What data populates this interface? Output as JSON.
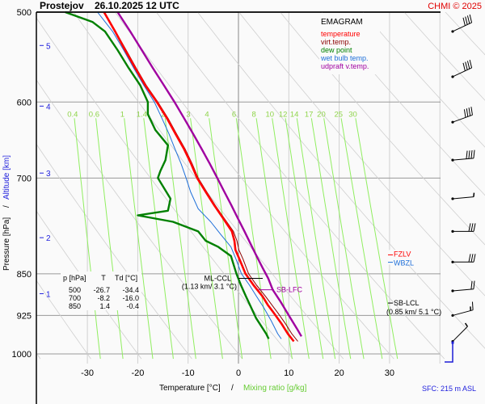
{
  "header": {
    "station": "Prostejov",
    "datetime": "26.10.2025 12 UTC",
    "copyright": "CHMI © 2025"
  },
  "legend": {
    "title": "EMAGRAM",
    "items": [
      {
        "label": "temperature",
        "color": "#ff0000"
      },
      {
        "label": "virt.temp.",
        "color": "#8b0000"
      },
      {
        "label": "dew point",
        "color": "#008000"
      },
      {
        "label": "wet bulb temp.",
        "color": "#1e6fd9"
      },
      {
        "label": "udpraft v.temp.",
        "color": "#a000a0"
      }
    ]
  },
  "table": {
    "headers": [
      "p [hPa]",
      "T",
      "Td [°C]"
    ],
    "rows": [
      [
        "500",
        "-26.7",
        "-34.4"
      ],
      [
        "700",
        "-8.2",
        "-16.0"
      ],
      [
        "850",
        "1.4",
        "-0.4"
      ]
    ]
  },
  "annotations": {
    "ml_ccl": {
      "label": "ML-CCL",
      "detail": "(1.13 km/ 3.1 °C)",
      "pressure": 858
    },
    "sb_lfc": {
      "label": "SB-LFC",
      "pressure": 878
    },
    "fzlv": {
      "label": "FZLV",
      "pressure": 818
    },
    "wbzl": {
      "label": "WBZL",
      "pressure": 825
    },
    "sb_lcl": {
      "label": "SB-LCL",
      "detail": "(0.85 km/ 5.1 °C)",
      "pressure": 902
    }
  },
  "footer": {
    "sfc": "SFC: 215 m ASL"
  },
  "chart_data": {
    "type": "line",
    "title": "Prostejov 26.10.2025 12 UTC — EMAGRAM",
    "xlabel": "Temperature [°C]",
    "xlabel2": "Mixing ratio [g/kg]",
    "ylabel": "Pressure [hPa]",
    "ylabel2": "Altitude [km]",
    "xlim": [
      -39,
      41
    ],
    "ylim": [
      1000,
      500
    ],
    "x_ticks": [
      -30,
      -20,
      -10,
      0,
      10,
      20,
      30
    ],
    "y_ticks": [
      500,
      600,
      700,
      850,
      925,
      1000
    ],
    "altitude_ticks": [
      {
        "km": 1,
        "p": 885
      },
      {
        "km": 2,
        "p": 790
      },
      {
        "km": 3,
        "p": 693
      },
      {
        "km": 4,
        "p": 605
      },
      {
        "km": 5,
        "p": 535
      }
    ],
    "mixing_ratio_labels": [
      "0.4",
      "0.6",
      "1",
      "1.4",
      "2",
      "3",
      "4",
      "6",
      "8",
      "10",
      "12",
      "14",
      "17",
      "20",
      "25",
      "30"
    ],
    "grid": true,
    "series": [
      {
        "name": "temperature",
        "color": "#ff0000",
        "points": [
          [
            -26.7,
            500
          ],
          [
            -24.5,
            520
          ],
          [
            -22.5,
            540
          ],
          [
            -20.5,
            560
          ],
          [
            -18.5,
            580
          ],
          [
            -16.2,
            600
          ],
          [
            -14.2,
            620
          ],
          [
            -12.5,
            640
          ],
          [
            -10.8,
            660
          ],
          [
            -9.4,
            680
          ],
          [
            -8.2,
            700
          ],
          [
            -6.5,
            720
          ],
          [
            -4.8,
            740
          ],
          [
            -3.0,
            760
          ],
          [
            -1.3,
            780
          ],
          [
            -0.8,
            795
          ],
          [
            -0.6,
            810
          ],
          [
            0.2,
            825
          ],
          [
            1.4,
            850
          ],
          [
            3.0,
            870
          ],
          [
            4.8,
            890
          ],
          [
            5.8,
            905
          ],
          [
            7.0,
            920
          ],
          [
            8.5,
            940
          ],
          [
            9.8,
            960
          ],
          [
            11.0,
            975
          ]
        ]
      },
      {
        "name": "virt.temp.",
        "color": "#8b0000",
        "points": [
          [
            -26.6,
            500
          ],
          [
            -24.4,
            520
          ],
          [
            -22.3,
            540
          ],
          [
            -20.3,
            560
          ],
          [
            -18.3,
            580
          ],
          [
            -16.0,
            600
          ],
          [
            -14.0,
            620
          ],
          [
            -12.3,
            640
          ],
          [
            -10.6,
            660
          ],
          [
            -9.2,
            680
          ],
          [
            -8.0,
            700
          ],
          [
            -6.3,
            720
          ],
          [
            -4.6,
            740
          ],
          [
            -2.8,
            760
          ],
          [
            -1.0,
            780
          ],
          [
            -0.3,
            795
          ],
          [
            0.1,
            810
          ],
          [
            0.9,
            825
          ],
          [
            2.0,
            850
          ],
          [
            3.6,
            870
          ],
          [
            5.4,
            890
          ],
          [
            6.6,
            905
          ],
          [
            7.8,
            920
          ],
          [
            9.3,
            940
          ],
          [
            10.6,
            960
          ],
          [
            11.8,
            975
          ]
        ]
      },
      {
        "name": "dew point",
        "color": "#008000",
        "points": [
          [
            -34.4,
            500
          ],
          [
            -29.0,
            510
          ],
          [
            -26.5,
            520
          ],
          [
            -24.0,
            540
          ],
          [
            -21.8,
            560
          ],
          [
            -19.5,
            580
          ],
          [
            -18.0,
            600
          ],
          [
            -18.0,
            615
          ],
          [
            -16.5,
            635
          ],
          [
            -14.0,
            655
          ],
          [
            -14.5,
            675
          ],
          [
            -15.5,
            690
          ],
          [
            -16.0,
            700
          ],
          [
            -13.5,
            730
          ],
          [
            -14.0,
            748
          ],
          [
            -20.0,
            755
          ],
          [
            -13.0,
            765
          ],
          [
            -8.0,
            780
          ],
          [
            -6.5,
            795
          ],
          [
            -4.0,
            805
          ],
          [
            -1.5,
            820
          ],
          [
            -0.4,
            850
          ],
          [
            0.5,
            870
          ],
          [
            1.5,
            890
          ],
          [
            2.5,
            910
          ],
          [
            3.5,
            930
          ],
          [
            5.5,
            960
          ],
          [
            6.0,
            970
          ]
        ]
      },
      {
        "name": "wet bulb temp.",
        "color": "#1e6fd9",
        "points": [
          [
            -28.0,
            500
          ],
          [
            -25.0,
            520
          ],
          [
            -22.8,
            540
          ],
          [
            -20.8,
            560
          ],
          [
            -18.8,
            580
          ],
          [
            -16.7,
            600
          ],
          [
            -15.2,
            620
          ],
          [
            -13.8,
            640
          ],
          [
            -12.6,
            660
          ],
          [
            -11.4,
            680
          ],
          [
            -10.4,
            700
          ],
          [
            -9.5,
            720
          ],
          [
            -8.0,
            745
          ],
          [
            -5.5,
            765
          ],
          [
            -3.5,
            785
          ],
          [
            -1.5,
            805
          ],
          [
            -0.5,
            825
          ],
          [
            0.6,
            850
          ],
          [
            2.2,
            870
          ],
          [
            3.6,
            890
          ],
          [
            5.0,
            910
          ],
          [
            6.5,
            935
          ],
          [
            7.8,
            960
          ],
          [
            8.5,
            970
          ]
        ]
      },
      {
        "name": "udpraft v.temp.",
        "color": "#a000a0",
        "points": [
          [
            -24.0,
            500
          ],
          [
            -21.5,
            520
          ],
          [
            -19.2,
            540
          ],
          [
            -17.0,
            560
          ],
          [
            -14.8,
            580
          ],
          [
            -12.7,
            600
          ],
          [
            -10.8,
            620
          ],
          [
            -9.0,
            640
          ],
          [
            -7.3,
            660
          ],
          [
            -5.7,
            680
          ],
          [
            -4.2,
            700
          ],
          [
            -2.8,
            720
          ],
          [
            -1.4,
            740
          ],
          [
            -0.1,
            760
          ],
          [
            1.2,
            780
          ],
          [
            2.4,
            800
          ],
          [
            3.6,
            820
          ],
          [
            4.8,
            840
          ],
          [
            5.9,
            858
          ],
          [
            6.8,
            878
          ],
          [
            8.4,
            900
          ],
          [
            10.0,
            925
          ],
          [
            11.6,
            950
          ],
          [
            12.5,
            965
          ]
        ]
      }
    ],
    "wind_barbs": [
      {
        "p": 520,
        "dir_deg": 245,
        "speed_kt": 40
      },
      {
        "p": 570,
        "dir_deg": 245,
        "speed_kt": 40
      },
      {
        "p": 625,
        "dir_deg": 250,
        "speed_kt": 40
      },
      {
        "p": 675,
        "dir_deg": 265,
        "speed_kt": 40
      },
      {
        "p": 730,
        "dir_deg": 265,
        "speed_kt": 5
      },
      {
        "p": 780,
        "dir_deg": 270,
        "speed_kt": 30
      },
      {
        "p": 830,
        "dir_deg": 270,
        "speed_kt": 30
      },
      {
        "p": 880,
        "dir_deg": 265,
        "speed_kt": 20
      },
      {
        "p": 925,
        "dir_deg": 255,
        "speed_kt": 15
      },
      {
        "p": 975,
        "dir_deg": 225,
        "speed_kt": 5
      }
    ]
  }
}
